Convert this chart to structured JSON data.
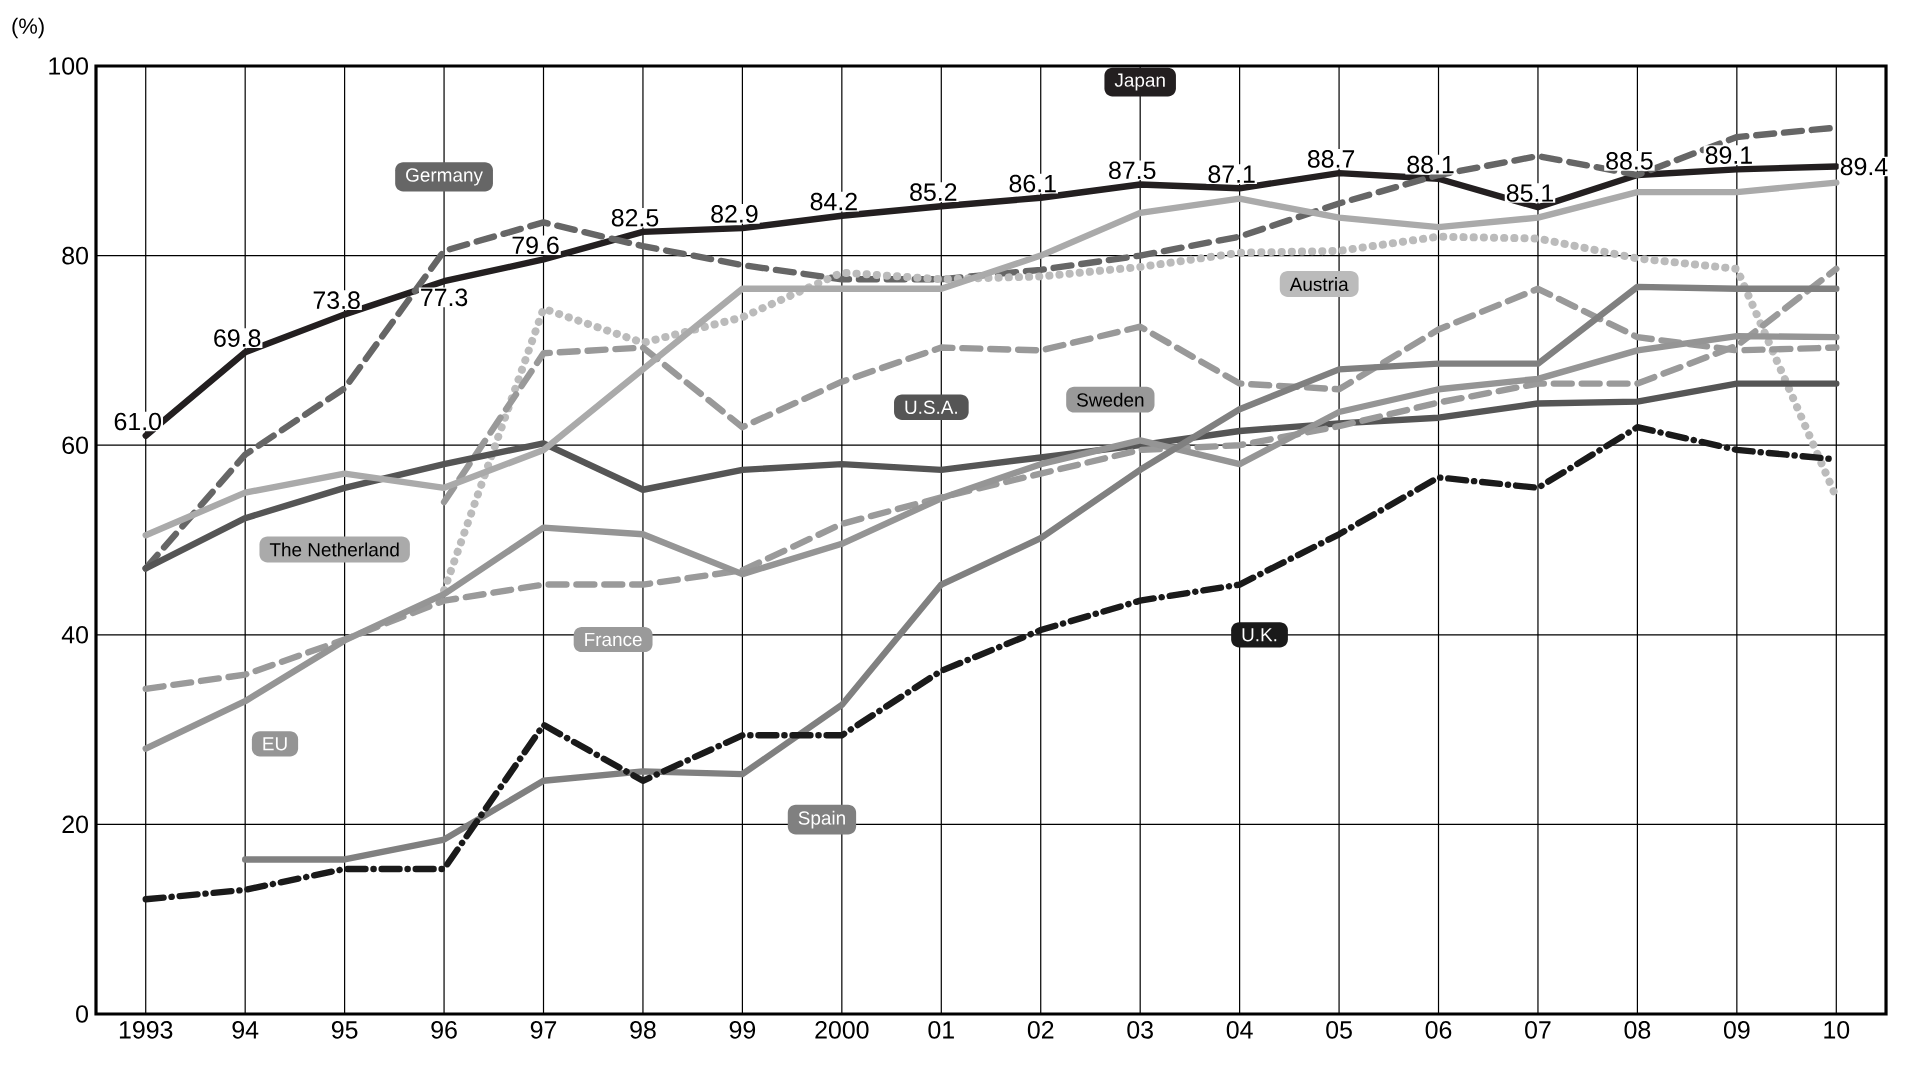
{
  "chart_data": {
    "type": "line",
    "ylabel": "(%)",
    "categories": [
      "1993",
      "94",
      "95",
      "96",
      "97",
      "98",
      "99",
      "2000",
      "01",
      "02",
      "03",
      "04",
      "05",
      "06",
      "07",
      "08",
      "09",
      "10"
    ],
    "ylim": [
      0,
      100
    ],
    "yticks": [
      0,
      20,
      40,
      60,
      80,
      100
    ],
    "grid": true,
    "legend": false,
    "marker": "none",
    "series": [
      {
        "name": "Japan",
        "color": "#231f20",
        "line_style": "solid",
        "values": [
          61.0,
          69.8,
          73.8,
          77.3,
          79.6,
          82.5,
          82.9,
          84.2,
          85.2,
          86.1,
          87.5,
          87.1,
          88.7,
          88.1,
          85.1,
          88.5,
          89.1,
          89.4
        ],
        "value_labels": [
          "61.0",
          "69.8",
          "73.8",
          "77.3",
          "79.6",
          "82.5",
          "82.9",
          "84.2",
          "85.2",
          "86.1",
          "87.5",
          "87.1",
          "88.7",
          "88.1",
          "85.1",
          "88.5",
          "89.1",
          "89.4"
        ]
      },
      {
        "name": "Germany",
        "color": "#666666",
        "line_style": "dashed",
        "values": [
          47,
          59,
          66,
          80.5,
          83.5,
          81,
          79,
          77.5,
          77.5,
          78.5,
          80,
          82,
          85.5,
          88.5,
          90.5,
          88.5,
          92.5,
          93.5
        ]
      },
      {
        "name": "Austria",
        "color": "#bbbbbb",
        "line_style": "dotted",
        "values": [
          null,
          null,
          null,
          44.7,
          74.4,
          70.8,
          73.5,
          78.2,
          77.5,
          77.8,
          78.8,
          80.3,
          80.5,
          82.0,
          81.8,
          79.7,
          78.6,
          54.5
        ]
      },
      {
        "name": "Sweden",
        "color": "#999999",
        "line_style": "dashed",
        "values": [
          null,
          null,
          null,
          54,
          69.7,
          70.3,
          61.9,
          66.7,
          70.3,
          70,
          72.5,
          66.5,
          65.9,
          72.2,
          76.5,
          71.4,
          70,
          70.3
        ]
      },
      {
        "name": "U.S.A.",
        "color": "#555555",
        "line_style": "solid",
        "values": [
          47,
          52.3,
          55.5,
          58,
          60.2,
          55.3,
          57.4,
          58,
          57.4,
          58.7,
          60,
          61.5,
          62.3,
          62.9,
          64.4,
          64.6,
          66.5,
          66.5
        ]
      },
      {
        "name": "The Netherland",
        "color": "#aaaaaa",
        "line_style": "solid",
        "values": [
          50.5,
          55,
          57,
          55.5,
          59.5,
          68,
          76.5,
          76.5,
          76.5,
          80,
          84.5,
          86,
          84,
          83,
          84,
          86.7,
          86.7,
          87.7
        ]
      },
      {
        "name": "France",
        "color": "#9a9a9a",
        "line_style": "dashed",
        "values": [
          34.3,
          35.8,
          39.5,
          43.6,
          45.3,
          45.3,
          46.8,
          51.7,
          54.5,
          57,
          59.5,
          60,
          62,
          64.5,
          66.5,
          66.5,
          70.5,
          78.6
        ]
      },
      {
        "name": "EU",
        "color": "#959595",
        "line_style": "solid",
        "values": [
          28,
          33,
          39.4,
          44.3,
          51.3,
          50.6,
          46.4,
          49.6,
          54.4,
          58,
          60.5,
          58,
          63.5,
          65.9,
          67,
          70,
          71.5,
          71.4
        ]
      },
      {
        "name": "Spain",
        "color": "#808080",
        "line_style": "solid",
        "values": [
          null,
          16.3,
          16.3,
          18.4,
          24.6,
          25.6,
          25.3,
          32.6,
          45.3,
          50.2,
          57.4,
          63.8,
          68,
          68.6,
          68.6,
          76.7,
          76.5,
          76.5
        ]
      },
      {
        "name": "U.K.",
        "color": "#1a1a1a",
        "line_style": "dashdot",
        "values": [
          12.1,
          13.1,
          15.3,
          15.3,
          30.5,
          24.6,
          29.4,
          29.4,
          36.2,
          40.5,
          43.6,
          45.3,
          50.6,
          56.6,
          55.5,
          61.9,
          59.5,
          58.5
        ]
      }
    ]
  }
}
